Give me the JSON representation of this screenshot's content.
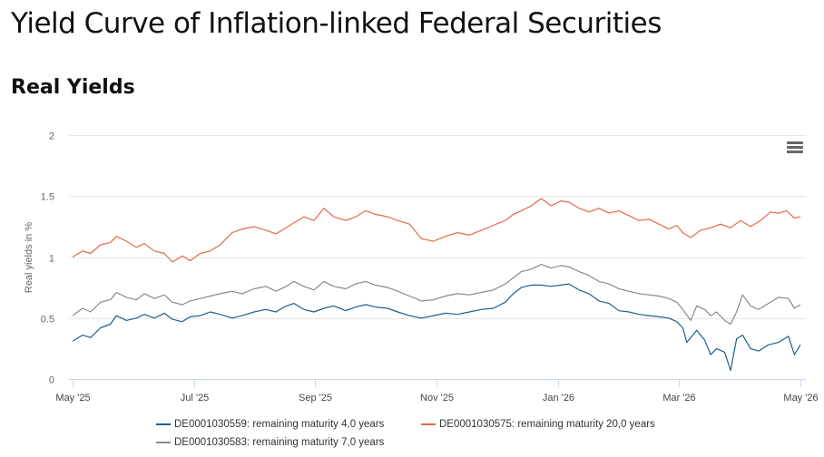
{
  "page": {
    "title": "Yield Curve of Inflation-linked Federal Securities",
    "section_title": "Real Yields"
  },
  "menu": {
    "icon": "hamburger-menu-icon"
  },
  "chart_data": {
    "type": "line",
    "title": "",
    "xlabel": "",
    "ylabel": "Real yields in %",
    "ylim": [
      0,
      2
    ],
    "yticks": [
      0,
      0.5,
      1,
      1.5,
      2
    ],
    "xlim": [
      "2025-05-01",
      "2026-05-01"
    ],
    "xtick_labels": [
      "May '25",
      "Jul '25",
      "Sep '25",
      "Nov '25",
      "Jan '26",
      "Mar '26",
      "May '26"
    ],
    "grid": "horizontal",
    "legend_position": "bottom",
    "series": [
      {
        "name": "DE0001030559: remaining maturity 4,0 years",
        "color": "#1f5f8b",
        "points": [
          [
            "2025-05-01",
            0.31
          ],
          [
            "2025-05-06",
            0.36
          ],
          [
            "2025-05-10",
            0.34
          ],
          [
            "2025-05-15",
            0.42
          ],
          [
            "2025-05-20",
            0.45
          ],
          [
            "2025-05-23",
            0.52
          ],
          [
            "2025-05-28",
            0.48
          ],
          [
            "2025-06-02",
            0.5
          ],
          [
            "2025-06-06",
            0.53
          ],
          [
            "2025-06-11",
            0.5
          ],
          [
            "2025-06-16",
            0.54
          ],
          [
            "2025-06-20",
            0.49
          ],
          [
            "2025-06-25",
            0.47
          ],
          [
            "2025-06-29",
            0.51
          ],
          [
            "2025-07-04",
            0.52
          ],
          [
            "2025-07-09",
            0.55
          ],
          [
            "2025-07-14",
            0.53
          ],
          [
            "2025-07-20",
            0.5
          ],
          [
            "2025-07-25",
            0.52
          ],
          [
            "2025-07-31",
            0.55
          ],
          [
            "2025-08-06",
            0.57
          ],
          [
            "2025-08-11",
            0.55
          ],
          [
            "2025-08-15",
            0.59
          ],
          [
            "2025-08-20",
            0.62
          ],
          [
            "2025-08-25",
            0.57
          ],
          [
            "2025-08-30",
            0.55
          ],
          [
            "2025-09-04",
            0.58
          ],
          [
            "2025-09-09",
            0.6
          ],
          [
            "2025-09-15",
            0.56
          ],
          [
            "2025-09-20",
            0.59
          ],
          [
            "2025-09-25",
            0.61
          ],
          [
            "2025-09-30",
            0.59
          ],
          [
            "2025-10-06",
            0.58
          ],
          [
            "2025-10-11",
            0.55
          ],
          [
            "2025-10-17",
            0.52
          ],
          [
            "2025-10-23",
            0.5
          ],
          [
            "2025-10-29",
            0.52
          ],
          [
            "2025-11-04",
            0.54
          ],
          [
            "2025-11-10",
            0.53
          ],
          [
            "2025-11-16",
            0.55
          ],
          [
            "2025-11-22",
            0.57
          ],
          [
            "2025-11-28",
            0.58
          ],
          [
            "2025-12-04",
            0.63
          ],
          [
            "2025-12-08",
            0.7
          ],
          [
            "2025-12-12",
            0.75
          ],
          [
            "2025-12-17",
            0.77
          ],
          [
            "2025-12-22",
            0.77
          ],
          [
            "2025-12-27",
            0.76
          ],
          [
            "2026-01-01",
            0.77
          ],
          [
            "2026-01-05",
            0.78
          ],
          [
            "2026-01-10",
            0.73
          ],
          [
            "2026-01-15",
            0.7
          ],
          [
            "2026-01-20",
            0.64
          ],
          [
            "2026-01-25",
            0.62
          ],
          [
            "2026-01-30",
            0.56
          ],
          [
            "2026-02-04",
            0.55
          ],
          [
            "2026-02-09",
            0.53
          ],
          [
            "2026-02-14",
            0.52
          ],
          [
            "2026-02-19",
            0.51
          ],
          [
            "2026-02-24",
            0.5
          ],
          [
            "2026-02-28",
            0.47
          ],
          [
            "2026-03-03",
            0.42
          ],
          [
            "2026-03-05",
            0.3
          ],
          [
            "2026-03-07",
            0.34
          ],
          [
            "2026-03-10",
            0.4
          ],
          [
            "2026-03-14",
            0.32
          ],
          [
            "2026-03-17",
            0.2
          ],
          [
            "2026-03-20",
            0.25
          ],
          [
            "2026-03-24",
            0.22
          ],
          [
            "2026-03-27",
            0.07
          ],
          [
            "2026-03-30",
            0.33
          ],
          [
            "2026-04-02",
            0.36
          ],
          [
            "2026-04-06",
            0.25
          ],
          [
            "2026-04-10",
            0.23
          ],
          [
            "2026-04-15",
            0.28
          ],
          [
            "2026-04-20",
            0.3
          ],
          [
            "2026-04-25",
            0.35
          ],
          [
            "2026-04-28",
            0.2
          ],
          [
            "2026-05-01",
            0.28
          ]
        ]
      },
      {
        "name": "DE0001030575: remaining maturity 20,0 years",
        "color": "#e06a4a",
        "points": [
          [
            "2025-05-01",
            1.0
          ],
          [
            "2025-05-06",
            1.05
          ],
          [
            "2025-05-10",
            1.03
          ],
          [
            "2025-05-15",
            1.1
          ],
          [
            "2025-05-20",
            1.12
          ],
          [
            "2025-05-23",
            1.17
          ],
          [
            "2025-05-28",
            1.13
          ],
          [
            "2025-06-02",
            1.08
          ],
          [
            "2025-06-06",
            1.11
          ],
          [
            "2025-06-11",
            1.05
          ],
          [
            "2025-06-16",
            1.03
          ],
          [
            "2025-06-20",
            0.96
          ],
          [
            "2025-06-25",
            1.01
          ],
          [
            "2025-06-29",
            0.97
          ],
          [
            "2025-07-04",
            1.03
          ],
          [
            "2025-07-09",
            1.05
          ],
          [
            "2025-07-14",
            1.1
          ],
          [
            "2025-07-20",
            1.2
          ],
          [
            "2025-07-25",
            1.23
          ],
          [
            "2025-07-31",
            1.25
          ],
          [
            "2025-08-06",
            1.22
          ],
          [
            "2025-08-11",
            1.19
          ],
          [
            "2025-08-15",
            1.23
          ],
          [
            "2025-08-20",
            1.28
          ],
          [
            "2025-08-25",
            1.33
          ],
          [
            "2025-08-30",
            1.3
          ],
          [
            "2025-09-04",
            1.4
          ],
          [
            "2025-09-09",
            1.33
          ],
          [
            "2025-09-15",
            1.3
          ],
          [
            "2025-09-20",
            1.33
          ],
          [
            "2025-09-25",
            1.38
          ],
          [
            "2025-09-30",
            1.35
          ],
          [
            "2025-10-06",
            1.33
          ],
          [
            "2025-10-11",
            1.3
          ],
          [
            "2025-10-17",
            1.27
          ],
          [
            "2025-10-23",
            1.15
          ],
          [
            "2025-10-29",
            1.13
          ],
          [
            "2025-11-04",
            1.17
          ],
          [
            "2025-11-10",
            1.2
          ],
          [
            "2025-11-16",
            1.18
          ],
          [
            "2025-11-22",
            1.22
          ],
          [
            "2025-11-28",
            1.26
          ],
          [
            "2025-12-04",
            1.3
          ],
          [
            "2025-12-08",
            1.35
          ],
          [
            "2025-12-12",
            1.38
          ],
          [
            "2025-12-17",
            1.42
          ],
          [
            "2025-12-22",
            1.48
          ],
          [
            "2025-12-27",
            1.42
          ],
          [
            "2026-01-01",
            1.46
          ],
          [
            "2026-01-05",
            1.45
          ],
          [
            "2026-01-10",
            1.4
          ],
          [
            "2026-01-15",
            1.37
          ],
          [
            "2026-01-20",
            1.4
          ],
          [
            "2026-01-25",
            1.36
          ],
          [
            "2026-01-30",
            1.38
          ],
          [
            "2026-02-04",
            1.34
          ],
          [
            "2026-02-09",
            1.3
          ],
          [
            "2026-02-14",
            1.31
          ],
          [
            "2026-02-19",
            1.27
          ],
          [
            "2026-02-24",
            1.23
          ],
          [
            "2026-02-28",
            1.26
          ],
          [
            "2026-03-03",
            1.2
          ],
          [
            "2026-03-07",
            1.16
          ],
          [
            "2026-03-12",
            1.22
          ],
          [
            "2026-03-17",
            1.24
          ],
          [
            "2026-03-22",
            1.27
          ],
          [
            "2026-03-27",
            1.24
          ],
          [
            "2026-04-01",
            1.3
          ],
          [
            "2026-04-06",
            1.25
          ],
          [
            "2026-04-11",
            1.3
          ],
          [
            "2026-04-16",
            1.37
          ],
          [
            "2026-04-20",
            1.36
          ],
          [
            "2026-04-24",
            1.38
          ],
          [
            "2026-04-28",
            1.32
          ],
          [
            "2026-05-01",
            1.33
          ]
        ]
      },
      {
        "name": "DE0001030583: remaining maturity 7,0 years",
        "color": "#8a8a8a",
        "points": [
          [
            "2025-05-01",
            0.52
          ],
          [
            "2025-05-06",
            0.58
          ],
          [
            "2025-05-10",
            0.55
          ],
          [
            "2025-05-15",
            0.63
          ],
          [
            "2025-05-20",
            0.65
          ],
          [
            "2025-05-23",
            0.71
          ],
          [
            "2025-05-28",
            0.67
          ],
          [
            "2025-06-02",
            0.65
          ],
          [
            "2025-06-06",
            0.7
          ],
          [
            "2025-06-11",
            0.66
          ],
          [
            "2025-06-16",
            0.69
          ],
          [
            "2025-06-20",
            0.63
          ],
          [
            "2025-06-25",
            0.61
          ],
          [
            "2025-06-29",
            0.64
          ],
          [
            "2025-07-04",
            0.66
          ],
          [
            "2025-07-09",
            0.68
          ],
          [
            "2025-07-14",
            0.7
          ],
          [
            "2025-07-20",
            0.72
          ],
          [
            "2025-07-25",
            0.7
          ],
          [
            "2025-07-31",
            0.74
          ],
          [
            "2025-08-06",
            0.76
          ],
          [
            "2025-08-11",
            0.72
          ],
          [
            "2025-08-15",
            0.75
          ],
          [
            "2025-08-20",
            0.8
          ],
          [
            "2025-08-25",
            0.76
          ],
          [
            "2025-08-30",
            0.73
          ],
          [
            "2025-09-04",
            0.8
          ],
          [
            "2025-09-09",
            0.76
          ],
          [
            "2025-09-15",
            0.74
          ],
          [
            "2025-09-20",
            0.78
          ],
          [
            "2025-09-25",
            0.8
          ],
          [
            "2025-09-30",
            0.77
          ],
          [
            "2025-10-06",
            0.75
          ],
          [
            "2025-10-11",
            0.72
          ],
          [
            "2025-10-17",
            0.68
          ],
          [
            "2025-10-23",
            0.64
          ],
          [
            "2025-10-29",
            0.65
          ],
          [
            "2025-11-04",
            0.68
          ],
          [
            "2025-11-10",
            0.7
          ],
          [
            "2025-11-16",
            0.69
          ],
          [
            "2025-11-22",
            0.71
          ],
          [
            "2025-11-28",
            0.73
          ],
          [
            "2025-12-04",
            0.78
          ],
          [
            "2025-12-08",
            0.83
          ],
          [
            "2025-12-12",
            0.88
          ],
          [
            "2025-12-17",
            0.9
          ],
          [
            "2025-12-22",
            0.94
          ],
          [
            "2025-12-27",
            0.91
          ],
          [
            "2026-01-01",
            0.93
          ],
          [
            "2026-01-05",
            0.92
          ],
          [
            "2026-01-10",
            0.88
          ],
          [
            "2026-01-15",
            0.85
          ],
          [
            "2026-01-20",
            0.8
          ],
          [
            "2026-01-25",
            0.78
          ],
          [
            "2026-01-30",
            0.74
          ],
          [
            "2026-02-04",
            0.72
          ],
          [
            "2026-02-09",
            0.7
          ],
          [
            "2026-02-14",
            0.69
          ],
          [
            "2026-02-19",
            0.68
          ],
          [
            "2026-02-24",
            0.66
          ],
          [
            "2026-02-28",
            0.63
          ],
          [
            "2026-03-03",
            0.57
          ],
          [
            "2026-03-07",
            0.48
          ],
          [
            "2026-03-10",
            0.6
          ],
          [
            "2026-03-14",
            0.57
          ],
          [
            "2026-03-17",
            0.52
          ],
          [
            "2026-03-20",
            0.55
          ],
          [
            "2026-03-24",
            0.48
          ],
          [
            "2026-03-27",
            0.45
          ],
          [
            "2026-03-30",
            0.55
          ],
          [
            "2026-04-02",
            0.69
          ],
          [
            "2026-04-06",
            0.6
          ],
          [
            "2026-04-10",
            0.57
          ],
          [
            "2026-04-15",
            0.62
          ],
          [
            "2026-04-20",
            0.67
          ],
          [
            "2026-04-25",
            0.66
          ],
          [
            "2026-04-28",
            0.58
          ],
          [
            "2026-05-01",
            0.61
          ]
        ]
      }
    ]
  }
}
